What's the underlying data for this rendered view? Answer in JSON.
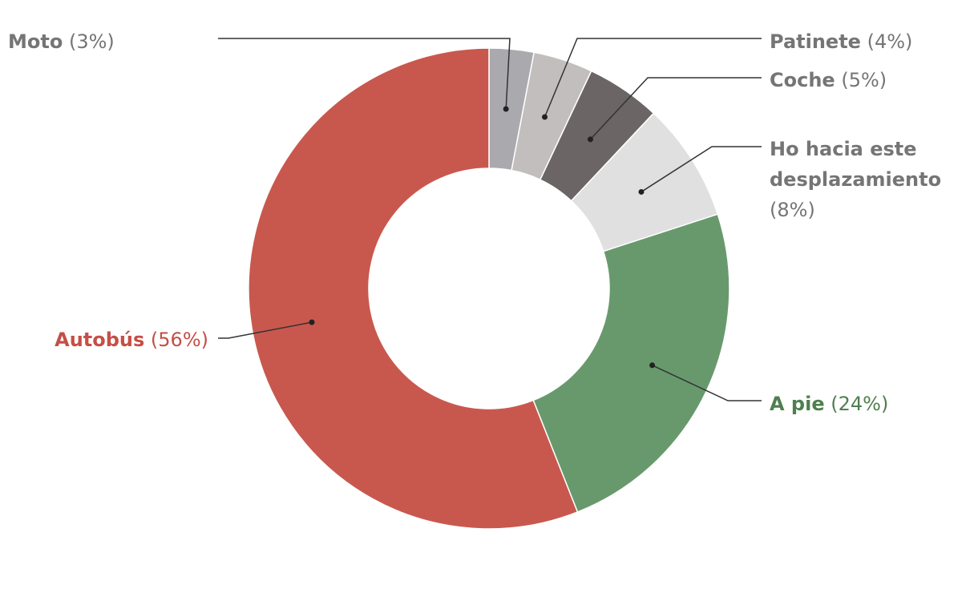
{
  "chart_data": {
    "type": "pie",
    "variant": "donut",
    "slices": [
      {
        "name": "Moto",
        "pct_label": "(3%)",
        "value": 3,
        "color": "#aaa9ae",
        "text_color": "#757575"
      },
      {
        "name": "Patinete",
        "pct_label": "(4%)",
        "value": 4,
        "color": "#c2bebe",
        "text_color": "#757575"
      },
      {
        "name": "Coche",
        "pct_label": "(5%)",
        "value": 5,
        "color": "#6b6565",
        "text_color": "#757575"
      },
      {
        "name": "Ho hacia este desplazamiento",
        "pct_label": "(8%)",
        "value": 8,
        "color": "#e0e0e0",
        "text_color": "#757575"
      },
      {
        "name": "A pie",
        "pct_label": "(24%)",
        "value": 24,
        "color": "#68996d",
        "text_color": "#4f7f4f"
      },
      {
        "name": "Autobús",
        "pct_label": "(56%)",
        "value": 56,
        "color": "#c8584e",
        "text_color": "#c54f46"
      }
    ]
  }
}
